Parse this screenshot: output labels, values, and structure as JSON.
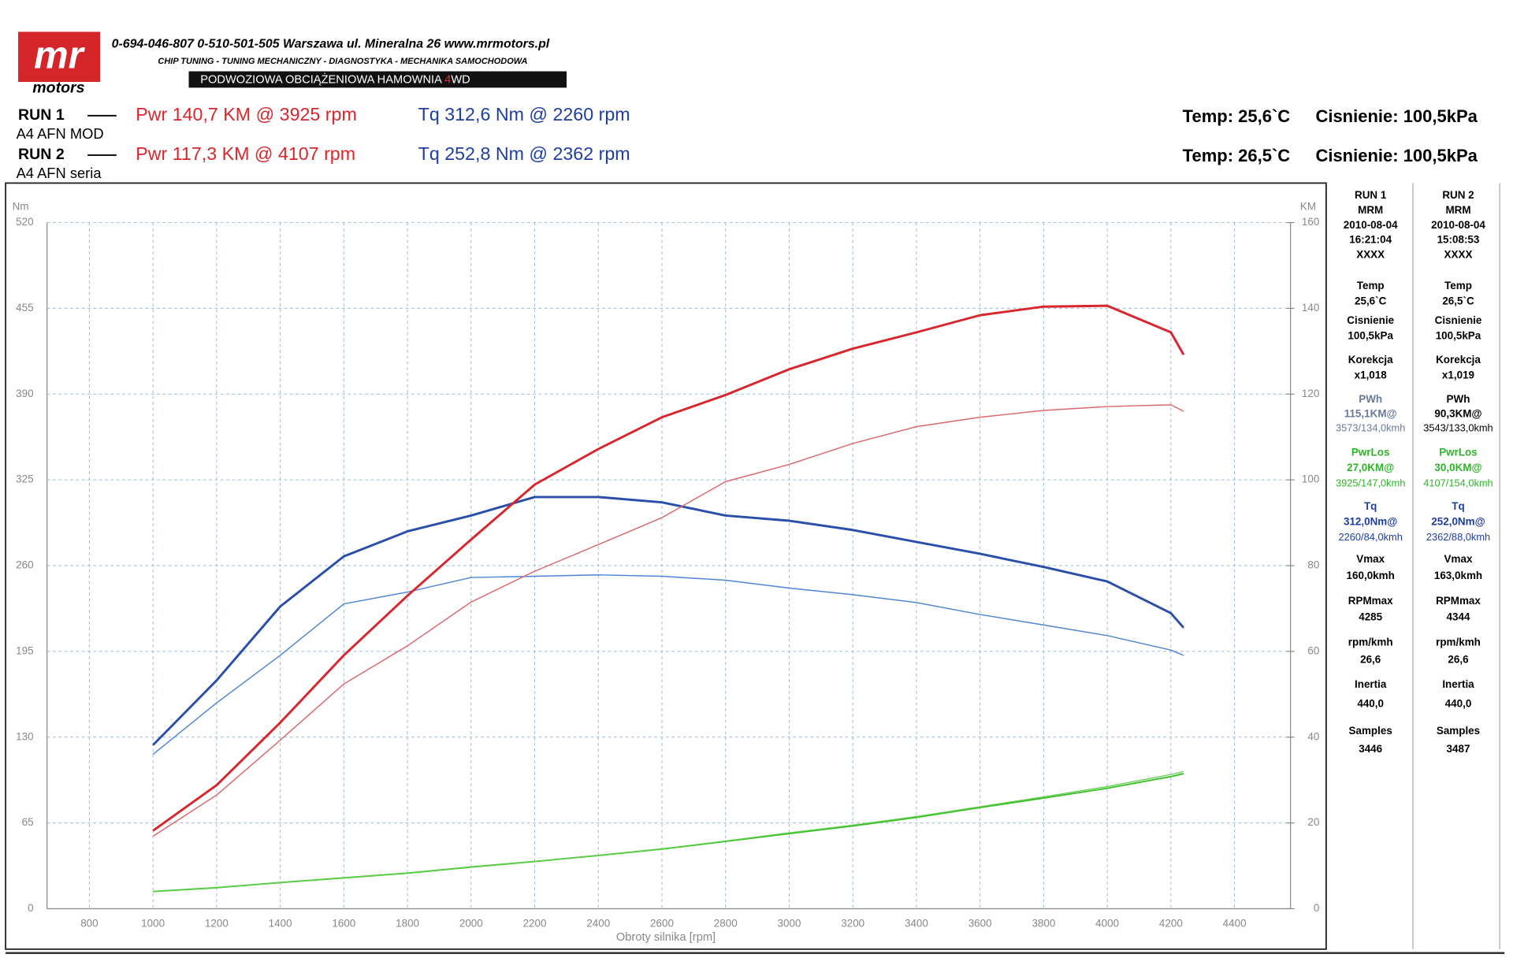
{
  "header": {
    "logo_top": "mr",
    "logo_bottom": "motors",
    "contact": "0-694-046-807   0-510-501-505   Warszawa ul. Mineralna 26   www.mrmotors.pl",
    "services": "CHIP TUNING - TUNING MECHANICZNY - DIAGNOSTYKA - MECHANIKA SAMOCHODOWA",
    "banner_a": "PODWOZIOWA OBCIĄŻENIOWA HAMOWNIA ",
    "banner_b": "4",
    "banner_c": "WD"
  },
  "runs": [
    {
      "run": "RUN 1",
      "car": "A4 AFN MOD",
      "pwr": "Pwr  140,7 KM @ 3925 rpm",
      "tq": "Tq 312,6 Nm @ 2260 rpm",
      "temp": "Temp: 25,6`C",
      "press": "Cisnienie: 100,5kPa"
    },
    {
      "run": "RUN 2",
      "car": "A4 AFN seria",
      "pwr": "Pwr  117,3 KM @ 4107 rpm",
      "tq": "Tq 252,8 Nm @ 2362 rpm",
      "temp": "Temp: 26,5`C",
      "press": "Cisnienie: 100,5kPa"
    }
  ],
  "side_table": [
    {
      "head": [
        "RUN 1",
        "MRM",
        "2010-08-04",
        "16:21:04",
        "XXXX"
      ],
      "blocks": [
        {
          "lines": [
            "Temp",
            "25,6`C"
          ],
          "color": "#000"
        },
        {
          "lines": [
            "Cisnienie",
            "100,5kPa"
          ],
          "color": "#000"
        },
        {
          "lines": [
            "Korekcja",
            "x1,018"
          ],
          "color": "#000"
        },
        {
          "lines": [
            "PWh",
            "115,1KM@",
            "3573/134,0kmh"
          ],
          "color": "#6a7a9a"
        },
        {
          "lines": [
            "PwrLos",
            "27,0KM@",
            "3925/147,0kmh"
          ],
          "color": "#2fb52a"
        },
        {
          "lines": [
            "Tq",
            "312,0Nm@",
            "2260/84,0kmh"
          ],
          "color": "#1f3fa0"
        },
        {
          "lines": [
            "Vmax",
            "160,0kmh"
          ],
          "color": "#000"
        },
        {
          "lines": [
            "RPMmax",
            "4285"
          ],
          "color": "#000"
        },
        {
          "lines": [
            "rpm/kmh",
            "26,6"
          ],
          "color": "#000"
        },
        {
          "lines": [
            "Inertia",
            "440,0"
          ],
          "color": "#000"
        },
        {
          "lines": [
            "Samples",
            "3446"
          ],
          "color": "#000"
        }
      ]
    },
    {
      "head": [
        "RUN 2",
        "MRM",
        "2010-08-04",
        "15:08:53",
        "XXXX"
      ],
      "blocks": [
        {
          "lines": [
            "Temp",
            "26,5`C"
          ],
          "color": "#000"
        },
        {
          "lines": [
            "Cisnienie",
            "100,5kPa"
          ],
          "color": "#000"
        },
        {
          "lines": [
            "Korekcja",
            "x1,019"
          ],
          "color": "#000"
        },
        {
          "lines": [
            "PWh",
            "90,3KM@",
            "3543/133,0kmh"
          ],
          "color": "#000"
        },
        {
          "lines": [
            "PwrLos",
            "30,0KM@",
            "4107/154,0kmh"
          ],
          "color": "#2fb52a"
        },
        {
          "lines": [
            "Tq",
            "252,0Nm@",
            "2362/88,0kmh"
          ],
          "color": "#1f3fa0"
        },
        {
          "lines": [
            "Vmax",
            "163,0kmh"
          ],
          "color": "#000"
        },
        {
          "lines": [
            "RPMmax",
            "4344"
          ],
          "color": "#000"
        },
        {
          "lines": [
            "rpm/kmh",
            "26,6"
          ],
          "color": "#000"
        },
        {
          "lines": [
            "Inertia",
            "440,0"
          ],
          "color": "#000"
        },
        {
          "lines": [
            "Samples",
            "3487"
          ],
          "color": "#000"
        }
      ]
    }
  ],
  "chart_data": {
    "type": "line",
    "y_label": "Nm",
    "y2_label": "KM",
    "x_label": "Obroty silnika [rpm]",
    "grid": true,
    "xlim": [
      667,
      4576
    ],
    "xticks": [
      800,
      1000,
      1200,
      1400,
      1600,
      1800,
      2000,
      2200,
      2400,
      2600,
      2800,
      3000,
      3200,
      3400,
      3600,
      3800,
      4000,
      4200,
      4400
    ],
    "ylim": [
      0,
      520
    ],
    "yticks": [
      0,
      65,
      130,
      195,
      260,
      325,
      390,
      455,
      520
    ],
    "y2lim": [
      0,
      160
    ],
    "y2ticks": [
      0,
      20,
      40,
      60,
      80,
      100,
      120,
      140,
      160
    ],
    "x": [
      1000,
      1200,
      1400,
      1600,
      1800,
      2000,
      2200,
      2400,
      2600,
      2800,
      3000,
      3200,
      3400,
      3600,
      3800,
      4000,
      4200,
      4240
    ],
    "series": [
      {
        "color": "#2a4faa",
        "values": [
          124,
          173,
          229,
          267,
          286,
          298,
          312,
          312,
          308,
          298,
          294,
          287,
          278,
          269,
          259,
          248,
          224,
          213
        ]
      },
      {
        "color": "#4f86d4",
        "values": [
          117,
          156,
          192,
          231,
          240,
          251,
          252,
          253,
          252,
          249,
          243,
          238,
          232,
          223,
          215,
          207,
          196,
          192
        ]
      },
      {
        "color": "#d8262c",
        "axis": "y2",
        "values": [
          18.2,
          28.8,
          43.4,
          59.1,
          73.0,
          86.1,
          98.9,
          107.2,
          114.6,
          119.8,
          125.8,
          130.6,
          134.4,
          138.4,
          140.4,
          140.6,
          134.4,
          129.2
        ]
      },
      {
        "color": "#d9696d",
        "axis": "y2",
        "values": [
          16.9,
          26.5,
          39.3,
          52.4,
          61.3,
          71.5,
          78.7,
          84.9,
          91.2,
          99.6,
          103.6,
          108.5,
          112.4,
          114.6,
          116.2,
          117.1,
          117.5,
          116.0
        ]
      },
      {
        "color": "#3cbf2a",
        "axis": "y2",
        "values": [
          4.0,
          4.9,
          6.1,
          7.2,
          8.3,
          9.7,
          11.0,
          12.4,
          13.9,
          15.7,
          17.5,
          19.3,
          21.3,
          23.6,
          25.8,
          28.1,
          30.8,
          31.5
        ]
      },
      {
        "color": "#5fcf4a",
        "axis": "y2",
        "values": [
          4.0,
          4.9,
          6.1,
          7.2,
          8.3,
          9.7,
          11.0,
          12.4,
          13.9,
          15.8,
          17.7,
          19.5,
          21.5,
          23.8,
          26.1,
          28.5,
          31.3,
          32.0
        ]
      }
    ]
  }
}
